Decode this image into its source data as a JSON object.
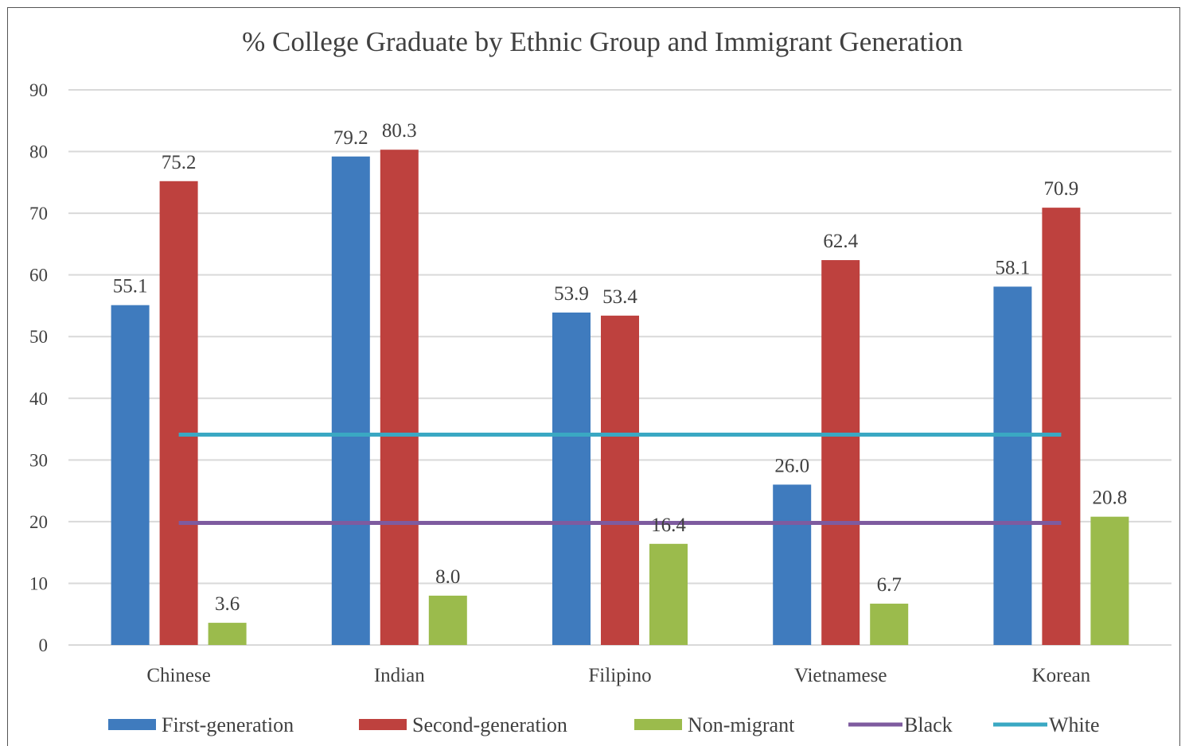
{
  "chart_data": {
    "type": "bar",
    "title": "% College Graduate by Ethnic Group and Immigrant Generation",
    "categories": [
      "Chinese",
      "Indian",
      "Filipino",
      "Vietnamese",
      "Korean"
    ],
    "ylim": [
      0,
      90
    ],
    "yticks": [
      0,
      10,
      20,
      30,
      40,
      50,
      60,
      70,
      80,
      90
    ],
    "grid": true,
    "legend_position": "bottom",
    "series": [
      {
        "name": "First-generation",
        "type": "bar",
        "color": "#3f7bbe",
        "values": [
          55.1,
          79.2,
          53.9,
          26.0,
          58.1
        ],
        "labels": [
          "55.1",
          "79.2",
          "53.9",
          "26.0",
          "58.1"
        ]
      },
      {
        "name": "Second-generation",
        "type": "bar",
        "color": "#be413e",
        "values": [
          75.2,
          80.3,
          53.4,
          62.4,
          70.9
        ],
        "labels": [
          "75.2",
          "80.3",
          "53.4",
          "62.4",
          "70.9"
        ]
      },
      {
        "name": "Non-migrant",
        "type": "bar",
        "color": "#9bbb4c",
        "values": [
          3.6,
          8.0,
          16.4,
          6.7,
          20.8
        ],
        "labels": [
          "3.6",
          "8.0",
          "16.4",
          "6.7",
          "20.8"
        ]
      },
      {
        "name": "Black",
        "type": "line",
        "color": "#7e5b9f",
        "values": [
          19.8,
          19.8,
          19.8,
          19.8,
          19.8
        ]
      },
      {
        "name": "White",
        "type": "line",
        "color": "#3aa8c3",
        "values": [
          34.1,
          34.1,
          34.1,
          34.1,
          34.1
        ]
      }
    ]
  }
}
